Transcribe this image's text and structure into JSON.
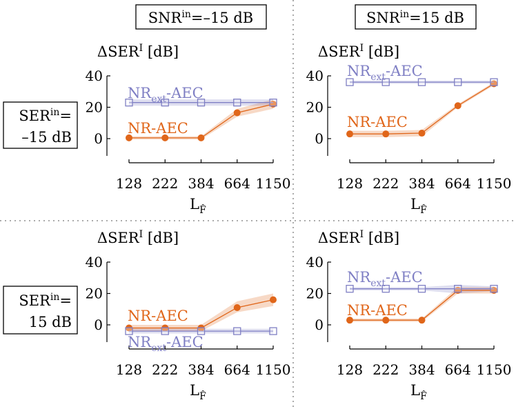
{
  "column_headers": [
    {
      "base": "SNR",
      "sup": "in",
      "rest": "=–15 dB"
    },
    {
      "base": "SNR",
      "sup": "in",
      "rest": "=15 dB"
    }
  ],
  "row_headers": [
    {
      "base": "SER",
      "sup": "in",
      "rest": "=",
      "line2": "–15 dB"
    },
    {
      "base": "SER",
      "sup": "in",
      "rest": "=",
      "line2": "15 dB"
    }
  ],
  "chart_data": [
    {
      "type": "line",
      "ylabel": {
        "base": "ΔSER",
        "sup": "I",
        "rest": " [dB]"
      },
      "xlabel": {
        "base": "L",
        "sub": "F̂"
      },
      "categories": [
        "128",
        "222",
        "384",
        "664",
        "1150"
      ],
      "ylim": [
        -11,
        40
      ],
      "yticks": [
        0,
        20,
        40
      ],
      "series": [
        {
          "name": [
            {
              "text": "NR-AEC"
            }
          ],
          "color": "#e0661a",
          "marker": "circle",
          "values": [
            0.5,
            0.5,
            0.5,
            16.5,
            22
          ],
          "lower": [
            -0.5,
            -0.5,
            -0.5,
            14,
            19
          ],
          "upper": [
            1.5,
            1.5,
            1.5,
            19,
            25
          ]
        },
        {
          "name": [
            {
              "text": "NR"
            },
            {
              "sub": "ext"
            },
            {
              "text": "-AEC"
            }
          ],
          "color": "#7f7fc4",
          "marker": "square",
          "values": [
            23,
            23,
            23,
            23,
            23
          ],
          "lower": [
            21,
            21,
            21,
            21,
            21
          ],
          "upper": [
            25,
            25,
            25,
            25,
            25
          ]
        }
      ]
    },
    {
      "type": "line",
      "ylabel": {
        "base": "ΔSER",
        "sup": "I",
        "rest": " [dB]"
      },
      "xlabel": {
        "base": "L",
        "sub": "F̂"
      },
      "categories": [
        "128",
        "222",
        "384",
        "664",
        "1150"
      ],
      "ylim": [
        -11,
        40
      ],
      "yticks": [
        0,
        20,
        40
      ],
      "series": [
        {
          "name": [
            {
              "text": "NR-AEC"
            }
          ],
          "color": "#e0661a",
          "marker": "circle",
          "values": [
            3,
            3,
            3.5,
            21,
            35
          ],
          "lower": [
            1,
            1,
            1.5,
            20,
            34
          ],
          "upper": [
            5,
            5,
            5.5,
            22,
            36
          ]
        },
        {
          "name": [
            {
              "text": "NR"
            },
            {
              "sub": "ext"
            },
            {
              "text": "-AEC"
            }
          ],
          "color": "#7f7fc4",
          "marker": "square",
          "values": [
            36,
            36,
            36,
            36,
            36
          ],
          "lower": [
            35,
            35,
            35,
            35,
            35
          ],
          "upper": [
            37,
            37,
            37,
            37,
            37
          ]
        }
      ]
    },
    {
      "type": "line",
      "ylabel": {
        "base": "ΔSER",
        "sup": "I",
        "rest": " [dB]"
      },
      "xlabel": {
        "base": "L",
        "sub": "F̂"
      },
      "categories": [
        "128",
        "222",
        "384",
        "664",
        "1150"
      ],
      "ylim": [
        -11,
        40
      ],
      "yticks": [
        0,
        20,
        40
      ],
      "series": [
        {
          "name": [
            {
              "text": "NR-AEC"
            }
          ],
          "color": "#e0661a",
          "marker": "circle",
          "values": [
            -2,
            -2,
            -2,
            11,
            16
          ],
          "lower": [
            -4,
            -4,
            -4,
            8,
            12
          ],
          "upper": [
            0,
            0,
            0,
            15,
            20
          ]
        },
        {
          "name": [
            {
              "text": "NR"
            },
            {
              "sub": "ext"
            },
            {
              "text": "-AEC"
            }
          ],
          "color": "#7f7fc4",
          "marker": "square",
          "values": [
            -4,
            -4,
            -4,
            -4,
            -4
          ],
          "lower": [
            -5.5,
            -5.5,
            -5.5,
            -5.5,
            -5.5
          ],
          "upper": [
            -2.5,
            -2.5,
            -2.5,
            -2.5,
            -2.5
          ]
        }
      ]
    },
    {
      "type": "line",
      "ylabel": {
        "base": "ΔSER",
        "sup": "I",
        "rest": " [dB]"
      },
      "xlabel": {
        "base": "L",
        "sub": "F̂"
      },
      "categories": [
        "128",
        "222",
        "384",
        "664",
        "1150"
      ],
      "ylim": [
        -11,
        40
      ],
      "yticks": [
        0,
        20,
        40
      ],
      "series": [
        {
          "name": [
            {
              "text": "NR-AEC"
            }
          ],
          "color": "#e0661a",
          "marker": "circle",
          "values": [
            3,
            3,
            3,
            22,
            22
          ],
          "lower": [
            2,
            2,
            2,
            20,
            20
          ],
          "upper": [
            4,
            4,
            4,
            24,
            24
          ]
        },
        {
          "name": [
            {
              "text": "NR"
            },
            {
              "sub": "ext"
            },
            {
              "text": "-AEC"
            }
          ],
          "color": "#7f7fc4",
          "marker": "square",
          "values": [
            23,
            23,
            23,
            23,
            23
          ],
          "lower": [
            22,
            22,
            22,
            20,
            21.5
          ],
          "upper": [
            24,
            24,
            24,
            25.5,
            24.5
          ]
        }
      ]
    }
  ]
}
